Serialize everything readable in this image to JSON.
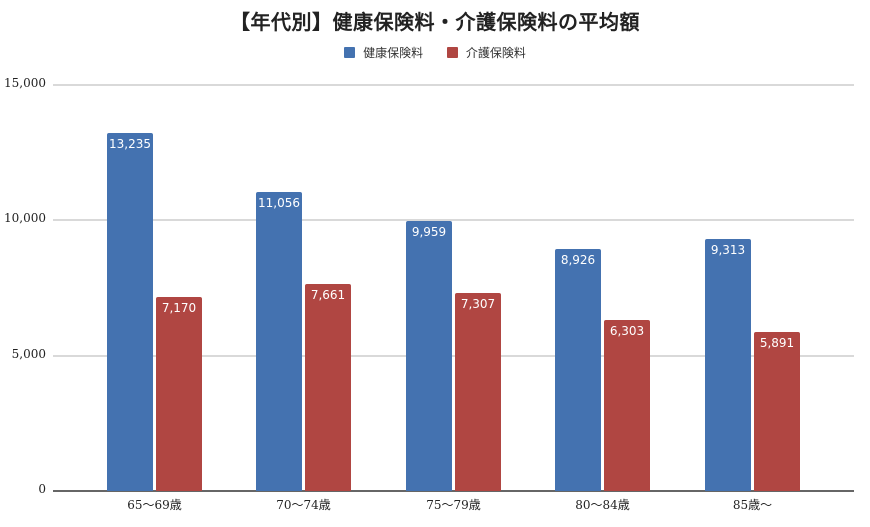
{
  "chart_data": {
    "type": "bar",
    "title": "【年代別】健康保険料・介護保険料の平均額",
    "categories": [
      "65〜69歳",
      "70〜74歳",
      "75〜79歳",
      "80〜84歳",
      "85歳〜"
    ],
    "series": [
      {
        "name": "健康保険料",
        "color": "#4472b0",
        "values": [
          13235,
          11056,
          9959,
          8926,
          9313
        ]
      },
      {
        "name": "介護保険料",
        "color": "#b04642",
        "values": [
          7170,
          7661,
          7307,
          6303,
          5891
        ]
      }
    ],
    "value_labels": {
      "健康保険料": [
        "13,235",
        "11,056",
        "9,959",
        "8,926",
        "9,313"
      ],
      "介護保険料": [
        "7,170",
        "7,661",
        "7,307",
        "6,303",
        "5,891"
      ]
    },
    "xlabel": "",
    "ylabel": "",
    "ylim": [
      0,
      15000
    ],
    "yticks": [
      "0",
      "5,000",
      "10,000",
      "15,000"
    ],
    "grid": true,
    "legend_position": "top"
  },
  "title": "【年代別】健康保険料・介護保険料の平均額",
  "legend": [
    {
      "label": "健康保険料",
      "color": "#4472b0"
    },
    {
      "label": "介護保険料",
      "color": "#b04642"
    }
  ],
  "yticks": [
    {
      "label": "15,000",
      "value": 15000
    },
    {
      "label": "10,000",
      "value": 10000
    },
    {
      "label": "5,000",
      "value": 5000
    },
    {
      "label": "0",
      "value": 0
    }
  ]
}
